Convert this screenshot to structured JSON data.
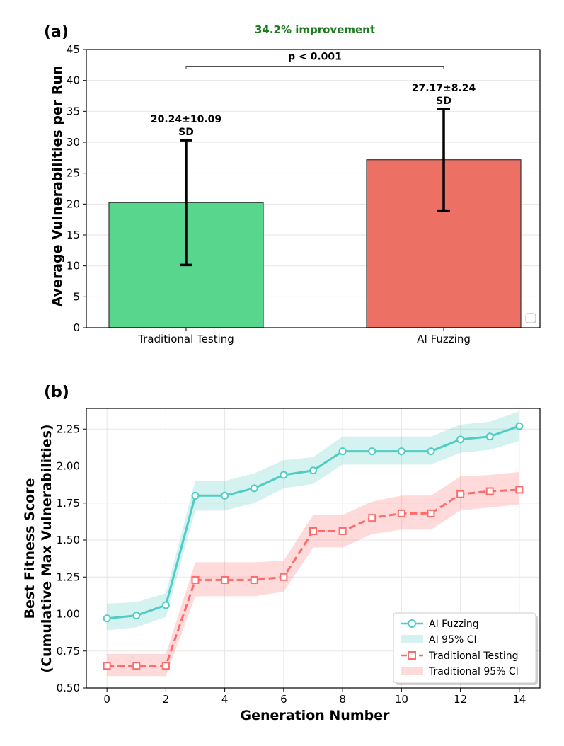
{
  "chart_data": [
    {
      "panel_label": "(a)",
      "type": "bar",
      "title": "34.2% improvement",
      "title_color": "#1e7a1e",
      "ylabel": "Average Vulnerabilities per Run",
      "xlabel": "",
      "ylim": [
        0,
        45
      ],
      "yticks": [
        0,
        5,
        10,
        15,
        20,
        25,
        30,
        35,
        40,
        45
      ],
      "grid": true,
      "categories": [
        "Traditional Testing",
        "AI Fuzzing"
      ],
      "values": [
        20.24,
        27.17
      ],
      "errors": [
        10.09,
        8.24
      ],
      "colors": [
        "#58d68d",
        "#ec7063"
      ],
      "value_labels": [
        {
          "line1": "20.24±10.09",
          "line2": "SD"
        },
        {
          "line1": "27.17±8.24",
          "line2": "SD"
        }
      ],
      "significance": {
        "text": "p < 0.001",
        "y": 42.3
      }
    },
    {
      "panel_label": "(b)",
      "type": "line",
      "xlabel": "Generation Number",
      "ylabel_line1": "Best Fitness Score",
      "ylabel_line2": "(Cumulative Max Vulnerabilities)",
      "xlim": [
        -0.7,
        14.7
      ],
      "ylim": [
        0.5,
        2.39
      ],
      "xticks": [
        0,
        2,
        4,
        6,
        8,
        10,
        12,
        14
      ],
      "yticks": [
        0.5,
        0.75,
        1.0,
        1.25,
        1.5,
        1.75,
        2.0,
        2.25
      ],
      "ytick_labels": [
        "0.50",
        "0.75",
        "1.00",
        "1.25",
        "1.50",
        "1.75",
        "2.00",
        "2.25"
      ],
      "grid": true,
      "legend_position": "lower-right",
      "x": [
        0,
        1,
        2,
        3,
        4,
        5,
        6,
        7,
        8,
        9,
        10,
        11,
        12,
        13,
        14
      ],
      "series": [
        {
          "name": "AI Fuzzing",
          "ci_name": "AI 95% CI",
          "color": "#4ecdc4",
          "marker": "circle",
          "dash": "solid",
          "values": [
            0.97,
            0.99,
            1.06,
            1.8,
            1.8,
            1.85,
            1.94,
            1.97,
            2.1,
            2.1,
            2.1,
            2.1,
            2.18,
            2.2,
            2.27
          ],
          "ci_lower": [
            0.89,
            0.91,
            0.98,
            1.7,
            1.7,
            1.75,
            1.85,
            1.88,
            2.01,
            2.01,
            2.01,
            2.01,
            2.09,
            2.11,
            2.17
          ],
          "ci_upper": [
            1.07,
            1.08,
            1.14,
            1.9,
            1.9,
            1.95,
            2.04,
            2.06,
            2.2,
            2.2,
            2.2,
            2.2,
            2.28,
            2.3,
            2.37
          ]
        },
        {
          "name": "Traditional Testing",
          "ci_name": "Traditional 95% CI",
          "color": "#ff6b6b",
          "marker": "square",
          "dash": "dashed",
          "values": [
            0.65,
            0.65,
            0.65,
            1.23,
            1.23,
            1.23,
            1.25,
            1.56,
            1.56,
            1.65,
            1.68,
            1.68,
            1.81,
            1.83,
            1.84
          ],
          "ci_lower": [
            0.58,
            0.58,
            0.58,
            1.12,
            1.12,
            1.12,
            1.15,
            1.45,
            1.45,
            1.54,
            1.57,
            1.57,
            1.7,
            1.72,
            1.74
          ],
          "ci_upper": [
            0.73,
            0.73,
            0.73,
            1.35,
            1.35,
            1.35,
            1.36,
            1.67,
            1.67,
            1.76,
            1.8,
            1.8,
            1.93,
            1.94,
            1.96
          ]
        }
      ]
    }
  ]
}
